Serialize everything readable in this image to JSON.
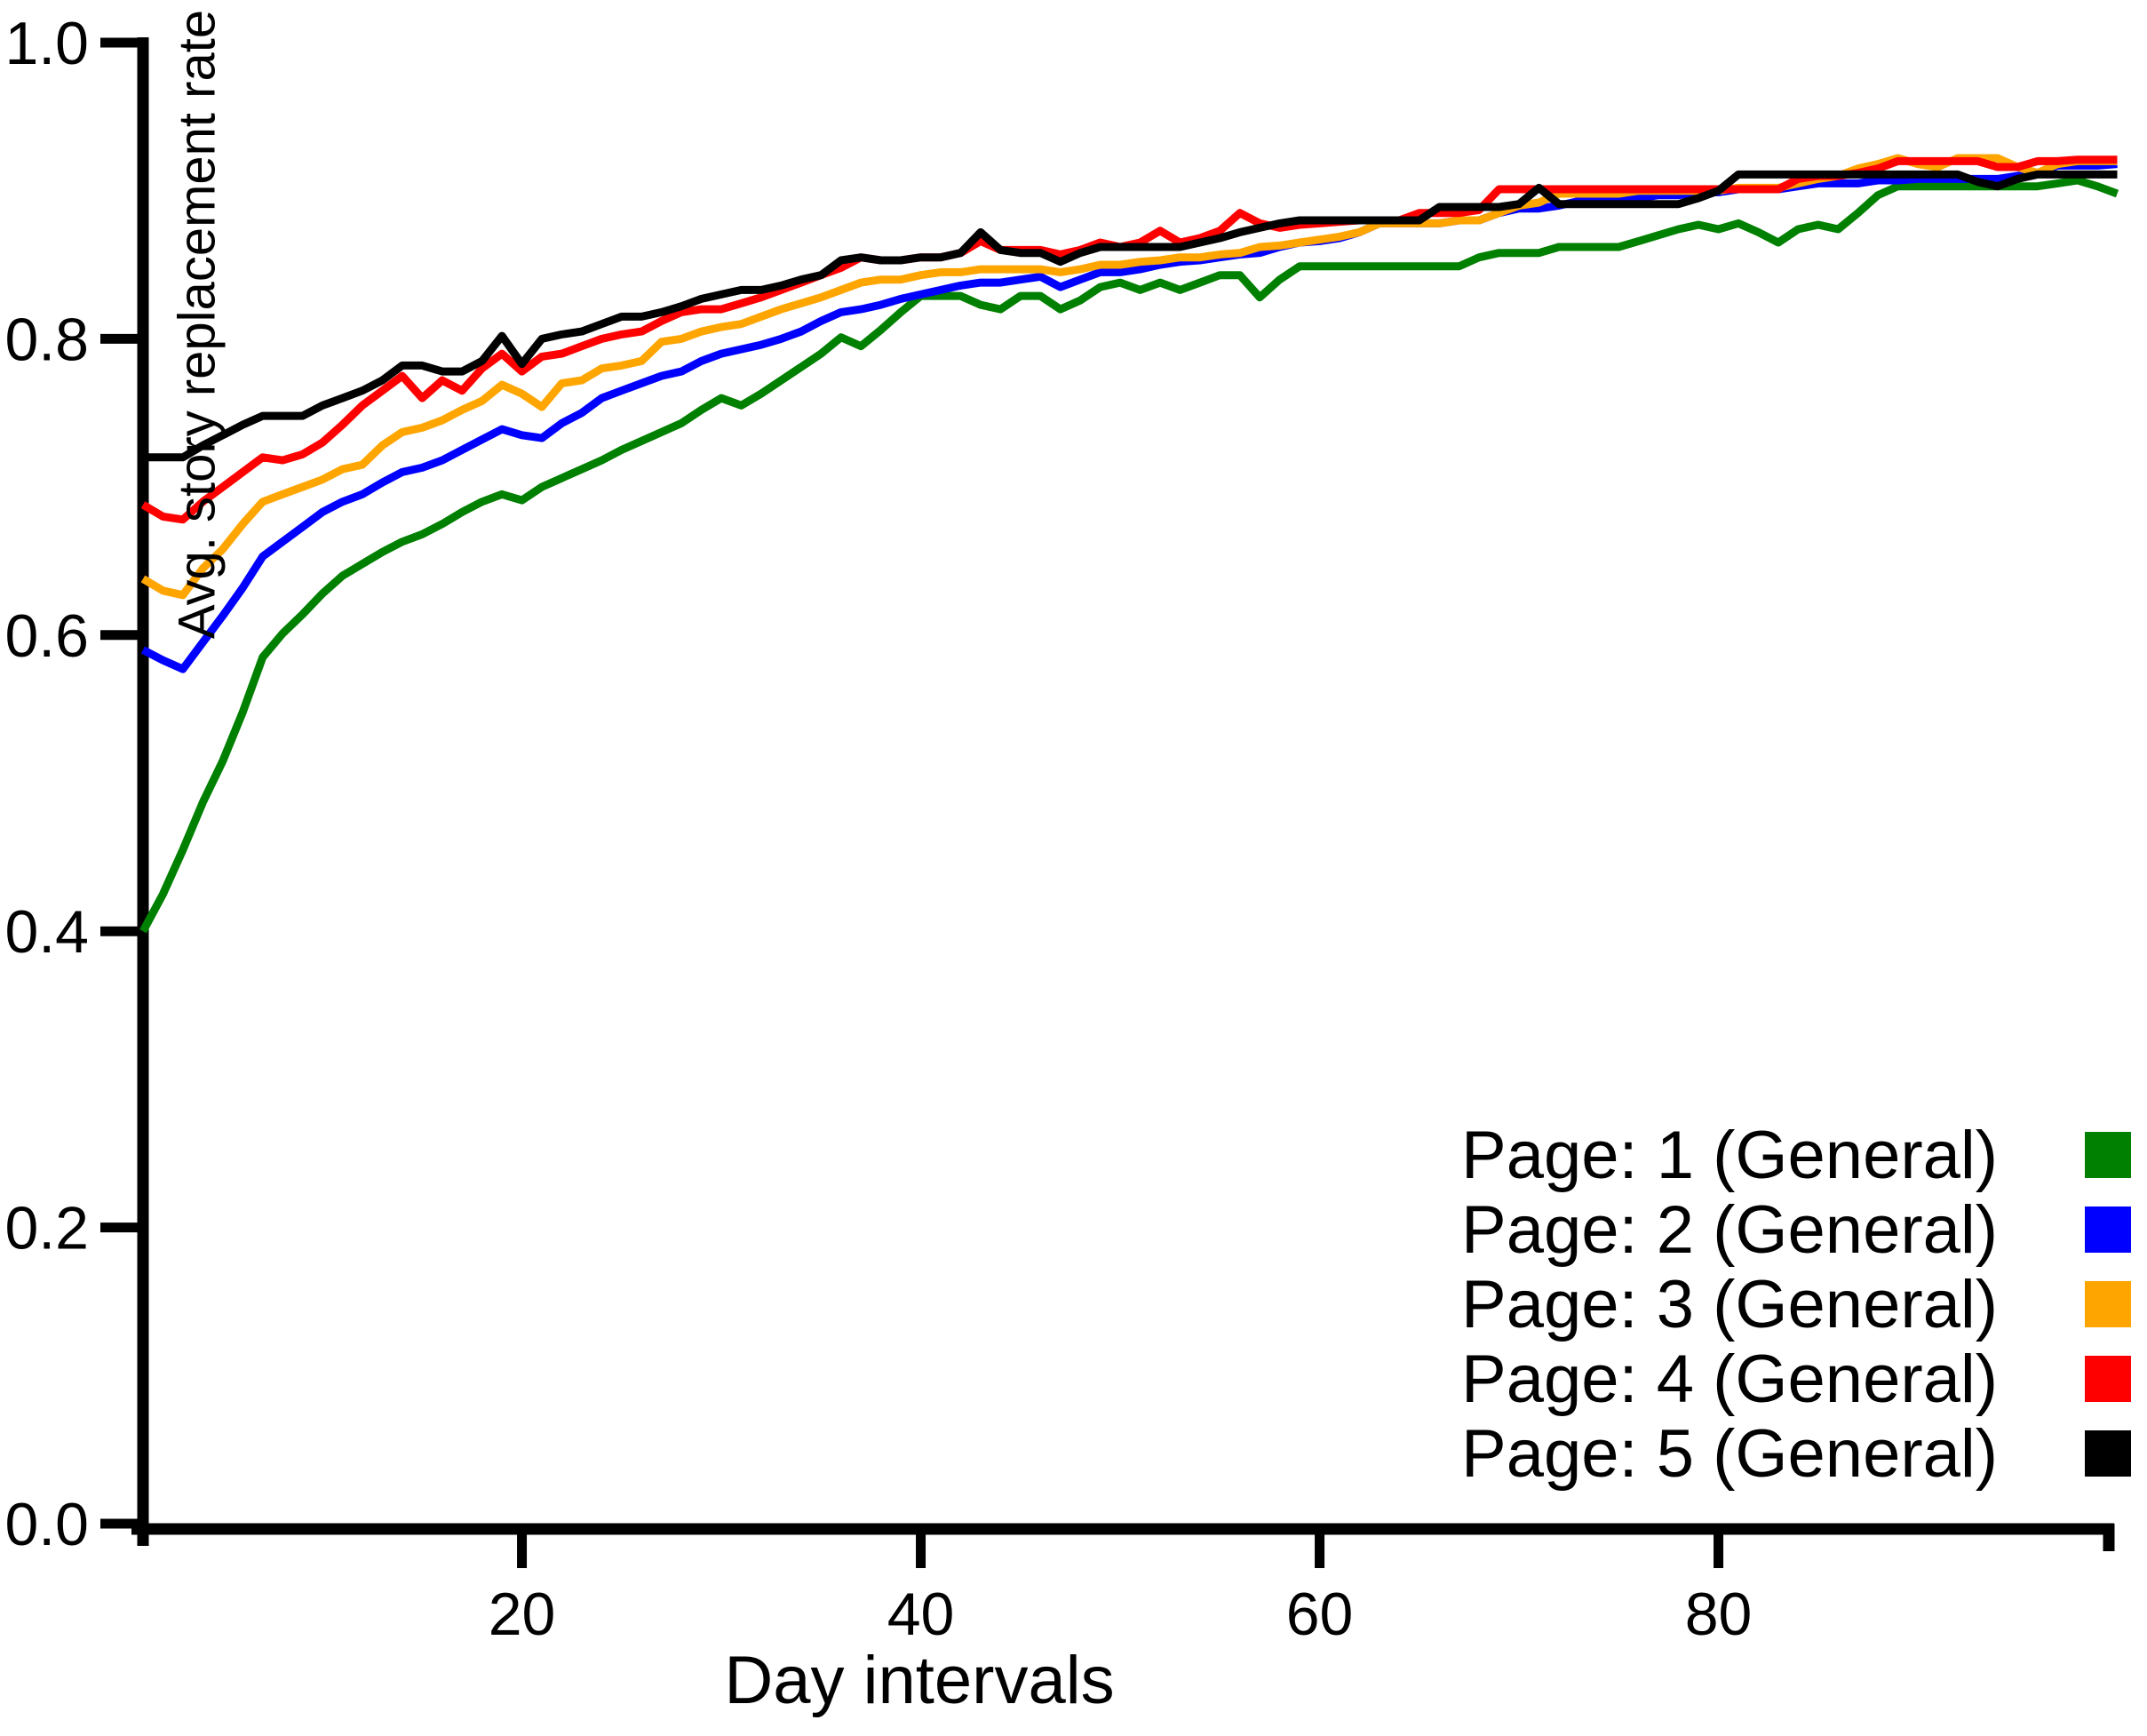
{
  "figure": {
    "background": "#ffffff",
    "axis_color": "#000000"
  },
  "legend": {
    "position": "lower right",
    "items": [
      {
        "label": "Page: 1 (General)",
        "color": "#008000"
      },
      {
        "label": "Page: 2 (General)",
        "color": "#0000ff"
      },
      {
        "label": "Page: 3 (General)",
        "color": "#ffa500"
      },
      {
        "label": "Page: 4 (General)",
        "color": "#ff0000"
      },
      {
        "label": "Page: 5 (General)",
        "color": "#000000"
      }
    ]
  },
  "chart_data": {
    "type": "line",
    "title": "",
    "xlabel": "Day intervals",
    "ylabel": "Avg. story replacement rate",
    "x_start": 1,
    "x_step": 1,
    "xlim": [
      1,
      100
    ],
    "ylim": [
      0.0,
      1.0
    ],
    "xticks": [
      20,
      40,
      60,
      80
    ],
    "yticks": [
      0.0,
      0.2,
      0.4,
      0.6,
      0.8,
      1.0
    ],
    "ytick_labels": [
      "0.0",
      "0.2",
      "0.4",
      "0.6",
      "0.8",
      "1.0"
    ],
    "grid": false,
    "legend_position": "lower right",
    "series": [
      {
        "name": "Page: 1 (General)",
        "color": "#008000",
        "values": [
          0.4,
          0.425,
          0.455,
          0.487,
          0.515,
          0.548,
          0.585,
          0.601,
          0.614,
          0.628,
          0.64,
          0.648,
          0.656,
          0.663,
          0.668,
          0.675,
          0.683,
          0.69,
          0.695,
          0.691,
          0.7,
          0.706,
          0.712,
          0.718,
          0.725,
          0.731,
          0.737,
          0.743,
          0.752,
          0.76,
          0.755,
          0.763,
          0.772,
          0.781,
          0.79,
          0.801,
          0.795,
          0.806,
          0.818,
          0.829,
          0.829,
          0.829,
          0.823,
          0.82,
          0.829,
          0.829,
          0.82,
          0.826,
          0.835,
          0.838,
          0.833,
          0.838,
          0.833,
          0.838,
          0.843,
          0.843,
          0.828,
          0.84,
          0.849,
          0.849,
          0.849,
          0.849,
          0.849,
          0.849,
          0.849,
          0.849,
          0.849,
          0.855,
          0.858,
          0.858,
          0.858,
          0.862,
          0.862,
          0.862,
          0.862,
          0.866,
          0.87,
          0.874,
          0.877,
          0.874,
          0.878,
          0.872,
          0.865,
          0.874,
          0.877,
          0.874,
          0.885,
          0.897,
          0.903,
          0.903,
          0.903,
          0.903,
          0.903,
          0.903,
          0.903,
          0.903,
          0.905,
          0.907,
          0.903,
          0.898
        ]
      },
      {
        "name": "Page: 2 (General)",
        "color": "#0000ff",
        "values": [
          0.59,
          0.583,
          0.577,
          0.595,
          0.613,
          0.632,
          0.653,
          0.663,
          0.673,
          0.683,
          0.69,
          0.695,
          0.703,
          0.71,
          0.713,
          0.718,
          0.725,
          0.732,
          0.739,
          0.735,
          0.733,
          0.743,
          0.75,
          0.76,
          0.765,
          0.77,
          0.775,
          0.778,
          0.785,
          0.79,
          0.793,
          0.796,
          0.8,
          0.805,
          0.812,
          0.818,
          0.82,
          0.823,
          0.827,
          0.83,
          0.833,
          0.836,
          0.838,
          0.838,
          0.84,
          0.842,
          0.835,
          0.84,
          0.845,
          0.845,
          0.847,
          0.85,
          0.852,
          0.853,
          0.855,
          0.857,
          0.858,
          0.862,
          0.865,
          0.866,
          0.868,
          0.872,
          0.878,
          0.878,
          0.878,
          0.878,
          0.88,
          0.88,
          0.885,
          0.888,
          0.888,
          0.89,
          0.893,
          0.895,
          0.895,
          0.895,
          0.897,
          0.897,
          0.899,
          0.899,
          0.901,
          0.901,
          0.901,
          0.903,
          0.905,
          0.905,
          0.905,
          0.907,
          0.907,
          0.908,
          0.908,
          0.908,
          0.908,
          0.908,
          0.91,
          0.912,
          0.917,
          0.917,
          0.917,
          0.918
        ]
      },
      {
        "name": "Page: 3 (General)",
        "color": "#ffa500",
        "values": [
          0.638,
          0.63,
          0.627,
          0.645,
          0.658,
          0.675,
          0.69,
          0.695,
          0.7,
          0.705,
          0.712,
          0.715,
          0.728,
          0.737,
          0.74,
          0.745,
          0.752,
          0.758,
          0.769,
          0.763,
          0.754,
          0.77,
          0.772,
          0.78,
          0.782,
          0.785,
          0.798,
          0.8,
          0.805,
          0.808,
          0.81,
          0.815,
          0.82,
          0.824,
          0.828,
          0.833,
          0.838,
          0.84,
          0.84,
          0.843,
          0.845,
          0.845,
          0.847,
          0.847,
          0.847,
          0.847,
          0.845,
          0.847,
          0.85,
          0.85,
          0.852,
          0.853,
          0.855,
          0.855,
          0.857,
          0.858,
          0.862,
          0.863,
          0.865,
          0.867,
          0.869,
          0.872,
          0.878,
          0.878,
          0.878,
          0.878,
          0.88,
          0.88,
          0.885,
          0.89,
          0.892,
          0.898,
          0.898,
          0.898,
          0.898,
          0.9,
          0.9,
          0.9,
          0.9,
          0.9,
          0.902,
          0.902,
          0.902,
          0.905,
          0.908,
          0.91,
          0.915,
          0.918,
          0.922,
          0.918,
          0.916,
          0.922,
          0.922,
          0.922,
          0.916,
          0.912,
          0.918,
          0.92,
          0.92,
          0.92
        ]
      },
      {
        "name": "Page: 4 (General)",
        "color": "#ff0000",
        "values": [
          0.688,
          0.68,
          0.678,
          0.69,
          0.7,
          0.71,
          0.72,
          0.718,
          0.722,
          0.73,
          0.742,
          0.755,
          0.765,
          0.775,
          0.76,
          0.772,
          0.765,
          0.78,
          0.79,
          0.778,
          0.788,
          0.79,
          0.795,
          0.8,
          0.803,
          0.805,
          0.812,
          0.818,
          0.82,
          0.82,
          0.824,
          0.828,
          0.833,
          0.838,
          0.843,
          0.848,
          0.855,
          0.853,
          0.853,
          0.855,
          0.855,
          0.858,
          0.866,
          0.86,
          0.86,
          0.86,
          0.857,
          0.86,
          0.865,
          0.862,
          0.865,
          0.873,
          0.865,
          0.868,
          0.873,
          0.885,
          0.878,
          0.875,
          0.877,
          0.878,
          0.879,
          0.88,
          0.88,
          0.88,
          0.885,
          0.885,
          0.885,
          0.887,
          0.901,
          0.901,
          0.901,
          0.901,
          0.901,
          0.901,
          0.901,
          0.901,
          0.901,
          0.901,
          0.901,
          0.901,
          0.901,
          0.901,
          0.901,
          0.908,
          0.91,
          0.91,
          0.912,
          0.915,
          0.92,
          0.92,
          0.92,
          0.92,
          0.92,
          0.916,
          0.916,
          0.92,
          0.92,
          0.921,
          0.921,
          0.921
        ]
      },
      {
        "name": "Page: 5 (General)",
        "color": "#000000",
        "values": [
          0.72,
          0.72,
          0.72,
          0.728,
          0.735,
          0.742,
          0.748,
          0.748,
          0.748,
          0.755,
          0.76,
          0.765,
          0.772,
          0.782,
          0.782,
          0.778,
          0.778,
          0.785,
          0.802,
          0.783,
          0.8,
          0.803,
          0.805,
          0.81,
          0.815,
          0.815,
          0.818,
          0.822,
          0.827,
          0.83,
          0.833,
          0.833,
          0.836,
          0.84,
          0.843,
          0.853,
          0.855,
          0.853,
          0.853,
          0.855,
          0.855,
          0.858,
          0.872,
          0.86,
          0.858,
          0.858,
          0.852,
          0.858,
          0.862,
          0.862,
          0.862,
          0.862,
          0.862,
          0.865,
          0.868,
          0.872,
          0.875,
          0.878,
          0.88,
          0.88,
          0.88,
          0.88,
          0.88,
          0.88,
          0.88,
          0.889,
          0.889,
          0.889,
          0.889,
          0.891,
          0.902,
          0.891,
          0.891,
          0.891,
          0.891,
          0.891,
          0.891,
          0.891,
          0.895,
          0.9,
          0.911,
          0.911,
          0.911,
          0.911,
          0.911,
          0.911,
          0.911,
          0.911,
          0.911,
          0.911,
          0.911,
          0.911,
          0.906,
          0.903,
          0.908,
          0.911,
          0.911,
          0.911,
          0.911,
          0.911
        ]
      }
    ]
  }
}
